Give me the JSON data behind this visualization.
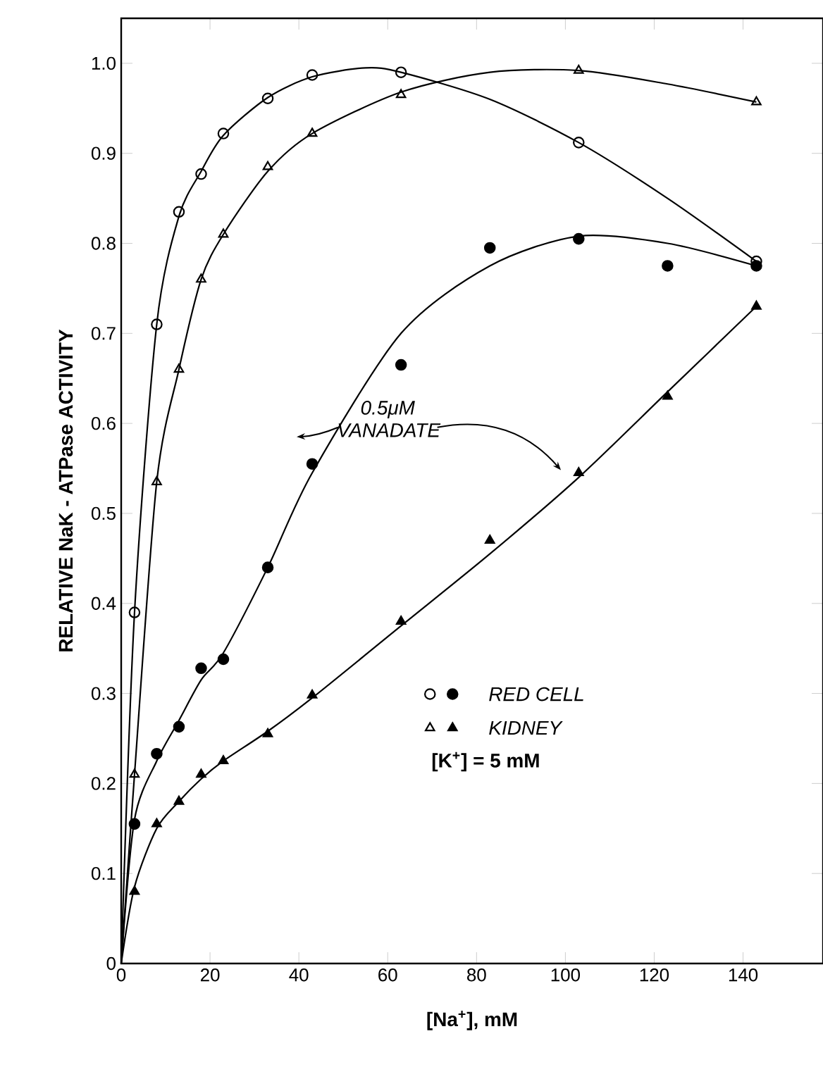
{
  "chart_data": {
    "type": "line",
    "xlabel": "[Na$^{+}$], mM",
    "ylabel": "RELATIVE NaK - ATPase ACTIVITY",
    "xlim": [
      0,
      158
    ],
    "ylim": [
      0,
      1.05
    ],
    "xticks": [
      0,
      20,
      40,
      60,
      80,
      100,
      120,
      140
    ],
    "yticks": [
      0,
      0.1,
      0.2,
      0.3,
      0.4,
      0.5,
      0.6,
      0.7,
      0.8,
      0.9,
      {
        "value": 1,
        "label": "1.0"
      }
    ],
    "grid": false,
    "legend": "bottom right",
    "annotations": [
      "0.5μM VANADATE",
      "[K$^{+}$] = 5 mM"
    ],
    "series": [
      {
        "marker": "none",
        "color": "#000000",
        "x": [
          0,
          3,
          8,
          13,
          18,
          23,
          33,
          43,
          55,
          63,
          83,
          103,
          123,
          143
        ],
        "values": [
          0,
          0.39,
          0.71,
          0.83,
          0.88,
          0.92,
          0.962,
          0.985,
          0.995,
          0.99,
          0.96,
          0.912,
          0.85,
          0.78
        ]
      },
      {
        "marker": "none",
        "color": "#000000",
        "x": [
          0,
          3,
          8,
          13,
          18,
          23,
          33,
          43,
          63,
          83,
          103,
          123,
          143
        ],
        "values": [
          0,
          0.21,
          0.535,
          0.66,
          0.76,
          0.81,
          0.88,
          0.922,
          0.968,
          0.99,
          0.992,
          0.977,
          0.957
        ]
      },
      {
        "marker": "none",
        "color": "#000000",
        "x": [
          0,
          3,
          8,
          13,
          18,
          23,
          33,
          43,
          63,
          83,
          103,
          123,
          143
        ],
        "values": [
          0,
          0.16,
          0.225,
          0.27,
          0.315,
          0.345,
          0.44,
          0.545,
          0.7,
          0.775,
          0.808,
          0.8,
          0.775
        ]
      },
      {
        "marker": "none",
        "color": "#000000",
        "x": [
          0,
          3,
          8,
          13,
          18,
          23,
          33,
          43,
          63,
          83,
          103,
          123,
          143
        ],
        "values": [
          0,
          0.085,
          0.15,
          0.18,
          0.205,
          0.225,
          0.258,
          0.295,
          0.375,
          0.455,
          0.54,
          0.635,
          0.73
        ]
      },
      {
        "type": "scatter",
        "marker": "circle-open",
        "color": "#000000",
        "x": [
          3,
          8,
          13,
          18,
          23,
          33,
          43,
          63,
          103,
          143
        ],
        "values": [
          0.39,
          0.71,
          0.835,
          0.877,
          0.922,
          0.961,
          0.987,
          0.99,
          0.912,
          0.78
        ]
      },
      {
        "name": "RED CELL",
        "type": "scatter",
        "marker": "circle",
        "color": "#000000",
        "x": [
          3,
          8,
          13,
          18,
          23,
          33,
          43,
          63,
          83,
          103,
          123,
          143
        ],
        "values": [
          0.155,
          0.233,
          0.263,
          0.328,
          0.338,
          0.44,
          0.555,
          0.665,
          0.795,
          0.805,
          0.775,
          0.775
        ]
      },
      {
        "type": "scatter",
        "marker": "triangle-open",
        "color": "#000000",
        "x": [
          3,
          8,
          13,
          18,
          23,
          33,
          43,
          63,
          103,
          143
        ],
        "values": [
          0.21,
          0.535,
          0.66,
          0.76,
          0.81,
          0.885,
          0.922,
          0.965,
          0.992,
          0.957
        ]
      },
      {
        "name": "KIDNEY",
        "type": "scatter",
        "marker": "triangle",
        "color": "#000000",
        "x": [
          3,
          8,
          13,
          18,
          23,
          33,
          43,
          63,
          83,
          103,
          123,
          143
        ],
        "values": [
          0.08,
          0.155,
          0.18,
          0.21,
          0.225,
          0.255,
          0.298,
          0.38,
          0.47,
          0.545,
          0.63,
          0.73
        ]
      }
    ]
  }
}
